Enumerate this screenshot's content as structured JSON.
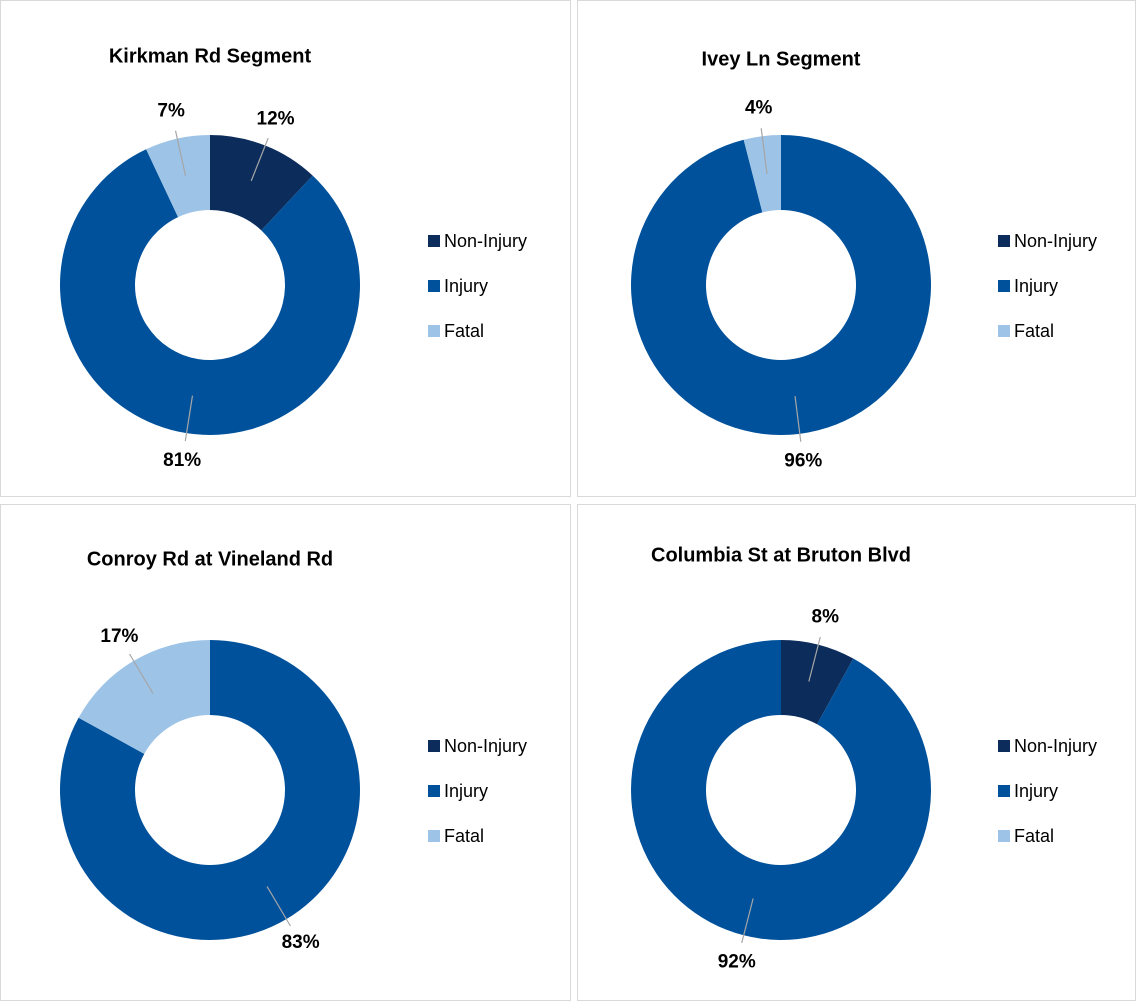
{
  "chart_data": [
    {
      "type": "pie",
      "donut": true,
      "title": "Kirkman Rd Segment",
      "categories": [
        "Non-Injury",
        "Injury",
        "Fatal"
      ],
      "colors": [
        "#0c2d5b",
        "#00519c",
        "#9dc3e6"
      ],
      "values": [
        12,
        81,
        7
      ],
      "value_labels": [
        "12%",
        "81%",
        "7%"
      ]
    },
    {
      "type": "pie",
      "donut": true,
      "title": "Ivey Ln Segment",
      "categories": [
        "Non-Injury",
        "Injury",
        "Fatal"
      ],
      "colors": [
        "#0c2d5b",
        "#00519c",
        "#9dc3e6"
      ],
      "values": [
        0,
        96,
        4
      ],
      "value_labels": [
        null,
        "96%",
        "4%"
      ]
    },
    {
      "type": "pie",
      "donut": true,
      "title": "Conroy Rd at Vineland Rd",
      "categories": [
        "Non-Injury",
        "Injury",
        "Fatal"
      ],
      "colors": [
        "#0c2d5b",
        "#00519c",
        "#9dc3e6"
      ],
      "values": [
        0,
        83,
        17
      ],
      "value_labels": [
        null,
        "83%",
        "17%"
      ]
    },
    {
      "type": "pie",
      "donut": true,
      "title": "Columbia St at Bruton Blvd",
      "categories": [
        "Non-Injury",
        "Injury",
        "Fatal"
      ],
      "colors": [
        "#0c2d5b",
        "#00519c",
        "#9dc3e6"
      ],
      "values": [
        8,
        92,
        0
      ],
      "value_labels": [
        "8%",
        "92%",
        null
      ]
    }
  ]
}
